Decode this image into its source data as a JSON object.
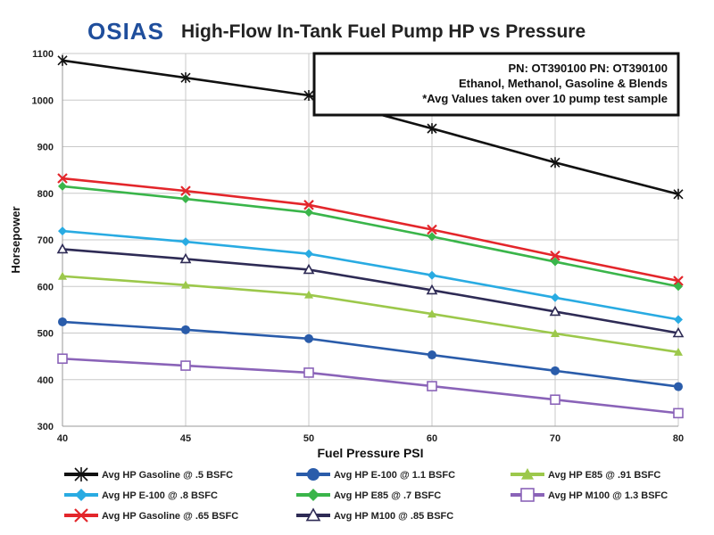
{
  "header": {
    "logo": "OSIAS",
    "title": "High-Flow In-Tank Fuel Pump HP vs Pressure"
  },
  "info_box": {
    "line1": "PN: OT390100  PN:  OT390100",
    "line2": "Ethanol, Methanol, Gasoline & Blends",
    "line3": "*Avg Values taken over 10 pump test sample"
  },
  "chart_data": {
    "type": "line",
    "title": "High-Flow In-Tank Fuel Pump HP vs Pressure",
    "xlabel": "Fuel Pressure PSI",
    "ylabel": "Horsepower",
    "categories": [
      "40",
      "45",
      "50",
      "60",
      "70",
      "80"
    ],
    "ylim": [
      300,
      1100
    ],
    "yticks": [
      "300",
      "400",
      "500",
      "600",
      "700",
      "800",
      "900",
      "1000",
      "1100"
    ],
    "grid": true,
    "legend_position": "bottom",
    "series": [
      {
        "name": "Avg HP Gasoline @ .5 BSFC",
        "color": "#111111",
        "marker": "star",
        "values": [
          1085,
          1048,
          1010,
          939,
          866,
          798
        ]
      },
      {
        "name": "Avg HP E-100 @ .8 BSFC",
        "color": "#29abe2",
        "marker": "diamond",
        "values": [
          719,
          696,
          670,
          624,
          576,
          529
        ]
      },
      {
        "name": "Avg HP Gasoline @ .65 BSFC",
        "color": "#e3262b",
        "marker": "x",
        "values": [
          832,
          805,
          775,
          722,
          666,
          612
        ]
      },
      {
        "name": "Avg HP E-100 @ 1.1 BSFC",
        "color": "#2a5caa",
        "marker": "circle",
        "values": [
          524,
          507,
          488,
          453,
          419,
          385
        ]
      },
      {
        "name": "Avg HP E85 @ .7 BSFC",
        "color": "#3ab54a",
        "marker": "diamond",
        "values": [
          815,
          788,
          759,
          707,
          653,
          600
        ]
      },
      {
        "name": "Avg HP M100 @ .85 BSFC",
        "color": "#2e2b55",
        "marker": "triangle-open",
        "values": [
          680,
          659,
          636,
          592,
          546,
          500
        ]
      },
      {
        "name": "Avg HP E85 @ .91 BSFC",
        "color": "#9cc84b",
        "marker": "triangle",
        "values": [
          622,
          603,
          582,
          541,
          499,
          459
        ]
      },
      {
        "name": "Avg HP M100 @ 1.3 BSFC",
        "color": "#8a63b8",
        "marker": "square-open",
        "values": [
          445,
          430,
          415,
          386,
          357,
          328
        ]
      }
    ]
  }
}
